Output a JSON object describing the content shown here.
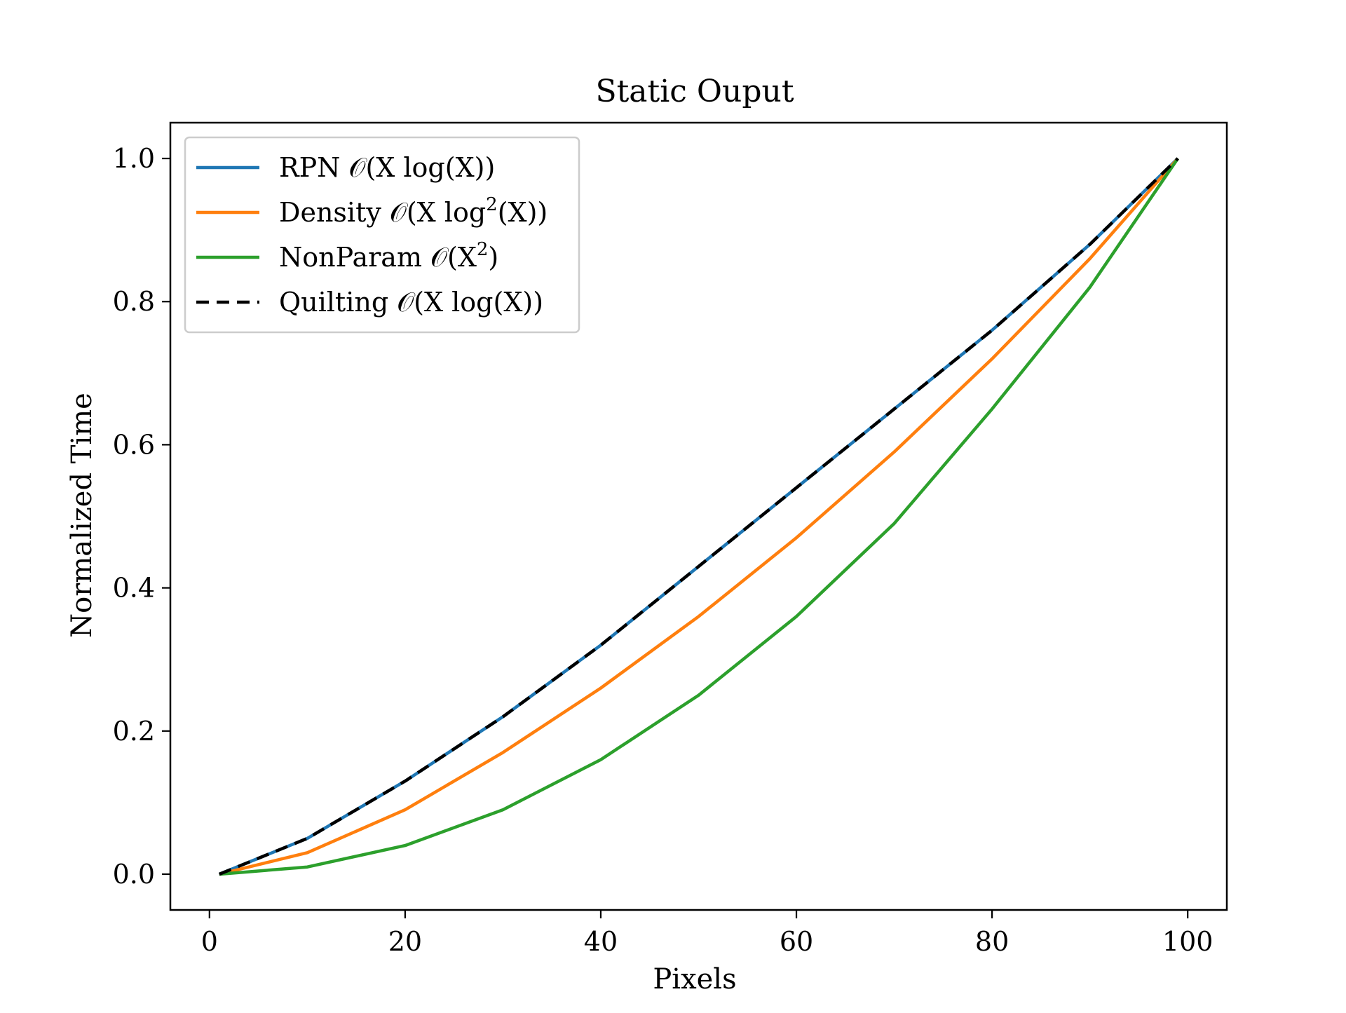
{
  "chart_data": {
    "type": "line",
    "title": "Static Ouput",
    "xlabel": "Pixels",
    "ylabel": "Normalized Time",
    "xlim": [
      -4,
      104
    ],
    "ylim": [
      -0.05,
      1.05
    ],
    "xticks": [
      "0",
      "20",
      "40",
      "60",
      "80",
      "100"
    ],
    "yticks": [
      "0.0",
      "0.2",
      "0.4",
      "0.6",
      "0.8",
      "1.0"
    ],
    "grid": false,
    "legend_position": "upper-left",
    "x": [
      1,
      10,
      20,
      30,
      40,
      50,
      60,
      70,
      80,
      90,
      99
    ],
    "series": [
      {
        "name": "RPN",
        "legend_label": {
          "prefix": "RPN 𝒪(X log(X))"
        },
        "color": "#1f77b4",
        "style": "solid",
        "values": [
          0.0,
          0.05,
          0.13,
          0.22,
          0.32,
          0.43,
          0.54,
          0.65,
          0.76,
          0.88,
          1.0
        ]
      },
      {
        "name": "Density",
        "legend_label": {
          "prefix": "Density 𝒪(X log",
          "sup": "2",
          "suffix": "(X))"
        },
        "color": "#ff7f0e",
        "style": "solid",
        "values": [
          0.0,
          0.03,
          0.09,
          0.17,
          0.26,
          0.36,
          0.47,
          0.59,
          0.72,
          0.86,
          1.0
        ]
      },
      {
        "name": "NonParam",
        "legend_label": {
          "prefix": "NonParam 𝒪(X",
          "sup": "2",
          "suffix": ")"
        },
        "color": "#2ca02c",
        "style": "solid",
        "values": [
          0.0,
          0.01,
          0.04,
          0.09,
          0.16,
          0.25,
          0.36,
          0.49,
          0.65,
          0.82,
          1.0
        ]
      },
      {
        "name": "Quilting",
        "legend_label": {
          "prefix": "Quilting 𝒪(X log(X))"
        },
        "color": "#000000",
        "style": "dashed",
        "values": [
          0.0,
          0.05,
          0.13,
          0.22,
          0.32,
          0.43,
          0.54,
          0.65,
          0.76,
          0.88,
          1.0
        ]
      }
    ]
  }
}
